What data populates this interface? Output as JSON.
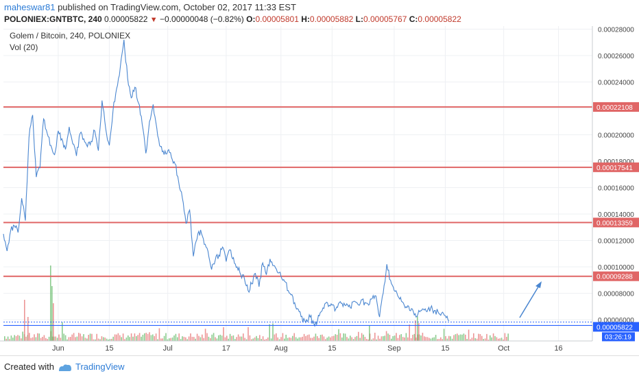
{
  "header": {
    "user": "maheswar81",
    "published_text": "published on TradingView.com, October 02, 2017 11:33 EST",
    "symbol": "POLONIEX:GNTBTC, 240",
    "last": "0.00005822",
    "change": "−0.00000048 (−0.82%)",
    "open_label": "O:",
    "open": "0.00005801",
    "high_label": "H:",
    "high": "0.00005882",
    "low_label": "L:",
    "low": "0.00005767",
    "close_label": "C:",
    "close": "0.00005822"
  },
  "legend": {
    "title": "Golem / Bitcoin, 240, POLONIEX",
    "volume": "Vol (20)"
  },
  "footer": {
    "created_with": "Created with",
    "brand": "TradingView"
  },
  "colors": {
    "price_line": "#4a86d0",
    "resistance": "#e06666",
    "current_price": "#2962ff",
    "axis_text": "#444444",
    "grid": "#eef0f3"
  },
  "chart_data": {
    "type": "line",
    "title": "Golem / Bitcoin, 240, POLONIEX",
    "x_tick_labels": [
      "Jun",
      "15",
      "Jul",
      "17",
      "Aug",
      "15",
      "Sep",
      "15",
      "Oct",
      "16"
    ],
    "y_tick_labels": [
      "0.00006000",
      "0.00008000",
      "0.00010000",
      "0.00012000",
      "0.00014000",
      "0.00016000",
      "0.00018000",
      "0.00020000",
      "0.00022000",
      "0.00024000",
      "0.00026000",
      "0.00028000"
    ],
    "ylim": [
      4.8e-05,
      0.00029
    ],
    "grid": true,
    "series": [
      {
        "values": [
          [
            "2017-05-17",
            0.000125
          ],
          [
            "2017-05-18",
            0.000112
          ],
          [
            "2017-05-19",
            0.000128
          ],
          [
            "2017-05-20",
            0.000131
          ],
          [
            "2017-05-21",
            0.000126
          ],
          [
            "2017-05-22",
            0.000152
          ],
          [
            "2017-05-23",
            0.000135
          ],
          [
            "2017-05-24",
            0.000198
          ],
          [
            "2017-05-25",
            0.000215
          ],
          [
            "2017-05-26",
            0.000168
          ],
          [
            "2017-05-27",
            0.000175
          ],
          [
            "2017-05-28",
            0.000212
          ],
          [
            "2017-05-29",
            0.000201
          ],
          [
            "2017-05-30",
            0.000192
          ],
          [
            "2017-05-31",
            0.000185
          ],
          [
            "2017-06-01",
            0.000203
          ],
          [
            "2017-06-02",
            0.000197
          ],
          [
            "2017-06-03",
            0.000189
          ],
          [
            "2017-06-04",
            0.000206
          ],
          [
            "2017-06-05",
            0.000193
          ],
          [
            "2017-06-06",
            0.000184
          ],
          [
            "2017-06-07",
            0.000201
          ],
          [
            "2017-06-08",
            0.000197
          ],
          [
            "2017-06-09",
            0.000191
          ],
          [
            "2017-06-10",
            0.000195
          ],
          [
            "2017-06-11",
            0.000203
          ],
          [
            "2017-06-12",
            0.000188
          ],
          [
            "2017-06-13",
            0.000226
          ],
          [
            "2017-06-14",
            0.000205
          ],
          [
            "2017-06-15",
            0.000192
          ],
          [
            "2017-06-16",
            0.000218
          ],
          [
            "2017-06-17",
            0.000235
          ],
          [
            "2017-06-18",
            0.000251
          ],
          [
            "2017-06-19",
            0.000272
          ],
          [
            "2017-06-20",
            0.000243
          ],
          [
            "2017-06-21",
            0.000228
          ],
          [
            "2017-06-22",
            0.000236
          ],
          [
            "2017-06-23",
            0.000224
          ],
          [
            "2017-06-24",
            0.000208
          ],
          [
            "2017-06-25",
            0.000186
          ],
          [
            "2017-06-26",
            0.00021
          ],
          [
            "2017-06-27",
            0.000223
          ],
          [
            "2017-06-28",
            0.000205
          ],
          [
            "2017-06-29",
            0.000191
          ],
          [
            "2017-06-30",
            0.000185
          ],
          [
            "2017-07-01",
            0.000188
          ],
          [
            "2017-07-02",
            0.000183
          ],
          [
            "2017-07-03",
            0.000178
          ],
          [
            "2017-07-04",
            0.000164
          ],
          [
            "2017-07-05",
            0.000152
          ],
          [
            "2017-07-06",
            0.000133
          ],
          [
            "2017-07-07",
            0.000143
          ],
          [
            "2017-07-08",
            0.000108
          ],
          [
            "2017-07-09",
            0.000121
          ],
          [
            "2017-07-10",
            0.000128
          ],
          [
            "2017-07-11",
            0.000117
          ],
          [
            "2017-07-12",
            0.000112
          ],
          [
            "2017-07-13",
            9.8e-05
          ],
          [
            "2017-07-14",
            0.000105
          ],
          [
            "2017-07-15",
            0.000109
          ],
          [
            "2017-07-16",
            0.000115
          ],
          [
            "2017-07-17",
            0.000104
          ],
          [
            "2017-07-18",
            0.000113
          ],
          [
            "2017-07-19",
            0.000107
          ],
          [
            "2017-07-20",
            0.0001
          ],
          [
            "2017-07-21",
            9.4e-05
          ],
          [
            "2017-07-22",
            9.1e-05
          ],
          [
            "2017-07-23",
            8.2e-05
          ],
          [
            "2017-07-24",
            8.7e-05
          ],
          [
            "2017-07-25",
            9.5e-05
          ],
          [
            "2017-07-26",
            8.5e-05
          ],
          [
            "2017-07-27",
            0.000103
          ],
          [
            "2017-07-28",
            9.4e-05
          ],
          [
            "2017-07-29",
            0.000106
          ],
          [
            "2017-07-30",
            0.000101
          ],
          [
            "2017-07-31",
            9.6e-05
          ],
          [
            "2017-08-01",
            9.3e-05
          ],
          [
            "2017-08-02",
            8.9e-05
          ],
          [
            "2017-08-03",
            8.2e-05
          ],
          [
            "2017-08-04",
            7.9e-05
          ],
          [
            "2017-08-05",
            7e-05
          ],
          [
            "2017-08-06",
            6.6e-05
          ],
          [
            "2017-08-07",
            5.8e-05
          ],
          [
            "2017-08-08",
            6e-05
          ],
          [
            "2017-08-09",
            6.2e-05
          ],
          [
            "2017-08-10",
            5.7e-05
          ],
          [
            "2017-08-11",
            5.9e-05
          ],
          [
            "2017-08-12",
            6.6e-05
          ],
          [
            "2017-08-13",
            7.2e-05
          ],
          [
            "2017-08-14",
            7e-05
          ],
          [
            "2017-08-15",
            7.1e-05
          ],
          [
            "2017-08-16",
            6.8e-05
          ],
          [
            "2017-08-17",
            7.3e-05
          ],
          [
            "2017-08-18",
            7e-05
          ],
          [
            "2017-08-19",
            7.2e-05
          ],
          [
            "2017-08-20",
            6.9e-05
          ],
          [
            "2017-08-21",
            7.4e-05
          ],
          [
            "2017-08-22",
            7.2e-05
          ],
          [
            "2017-08-23",
            7.5e-05
          ],
          [
            "2017-08-24",
            7.3e-05
          ],
          [
            "2017-08-25",
            7.1e-05
          ],
          [
            "2017-08-26",
            7.6e-05
          ],
          [
            "2017-08-27",
            7.8e-05
          ],
          [
            "2017-08-28",
            6.2e-05
          ],
          [
            "2017-08-29",
            8e-05
          ],
          [
            "2017-08-30",
            0.000102
          ],
          [
            "2017-08-31",
            9e-05
          ],
          [
            "2017-09-01",
            8.2e-05
          ],
          [
            "2017-09-02",
            7.8e-05
          ],
          [
            "2017-09-03",
            7.4e-05
          ],
          [
            "2017-09-04",
            6.9e-05
          ],
          [
            "2017-09-05",
            7e-05
          ],
          [
            "2017-09-06",
            6.8e-05
          ],
          [
            "2017-09-07",
            6.2e-05
          ],
          [
            "2017-09-08",
            6.6e-05
          ],
          [
            "2017-09-09",
            6.8e-05
          ],
          [
            "2017-09-10",
            6.6e-05
          ],
          [
            "2017-09-11",
            6.9e-05
          ],
          [
            "2017-09-12",
            6.7e-05
          ],
          [
            "2017-09-13",
            6.6e-05
          ],
          [
            "2017-09-14",
            6.5e-05
          ],
          [
            "2017-09-15",
            6.3e-05
          ],
          [
            "2017-09-16",
            5.9e-05
          ]
        ]
      }
    ],
    "resistance_levels": [
      "0.00022108",
      "0.00017541",
      "0.00013359",
      "0.00009288"
    ],
    "current_price_label": "0.00005822",
    "countdown_label": "03:26:19"
  }
}
